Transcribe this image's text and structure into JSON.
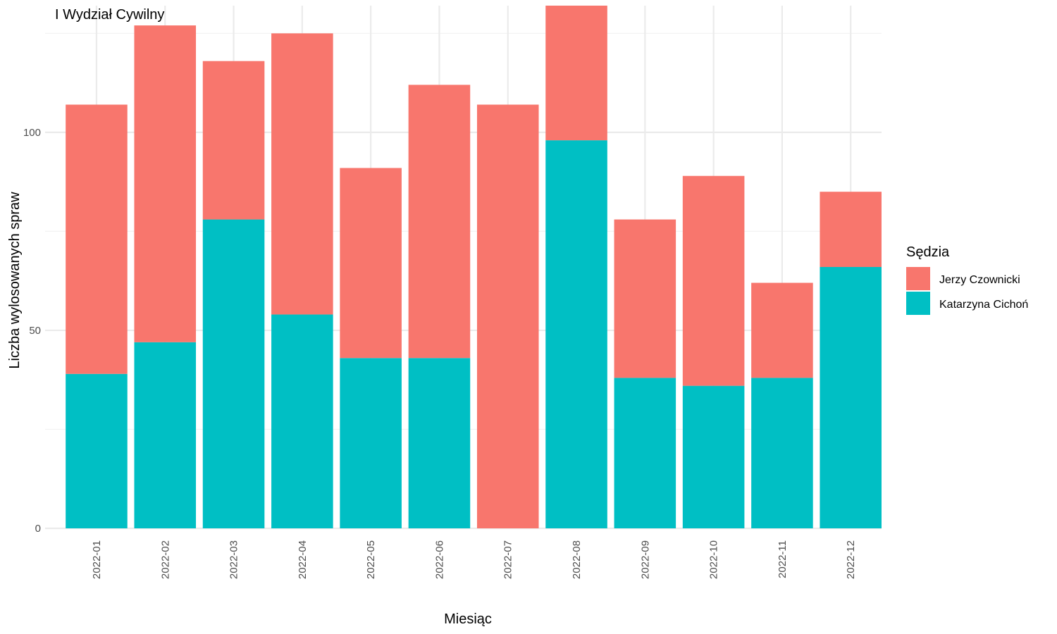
{
  "chart_data": {
    "type": "bar",
    "stacked": true,
    "title": "I Wydział Cywilny",
    "xlabel": "Miesiąc",
    "ylabel": "Liczba wylosowanych spraw",
    "categories": [
      "2022-01",
      "2022-02",
      "2022-03",
      "2022-04",
      "2022-05",
      "2022-06",
      "2022-07",
      "2022-08",
      "2022-09",
      "2022-10",
      "2022-11",
      "2022-12"
    ],
    "series": [
      {
        "name": "Katarzyna Cichoń",
        "color": "#00BFC4",
        "values": [
          39,
          47,
          78,
          54,
          43,
          43,
          0,
          98,
          38,
          36,
          38,
          66
        ]
      },
      {
        "name": "Jerzy Czownicki",
        "color": "#F8766D",
        "values": [
          68,
          80,
          40,
          71,
          48,
          69,
          107,
          34,
          40,
          53,
          24,
          19
        ]
      }
    ],
    "ylim": [
      0,
      132
    ],
    "yticks": [
      0,
      50,
      100
    ],
    "grid": true,
    "legend": {
      "title": "Sędzia",
      "position": "right",
      "entries": [
        "Jerzy Czownicki",
        "Katarzyna Cichoń"
      ]
    }
  }
}
